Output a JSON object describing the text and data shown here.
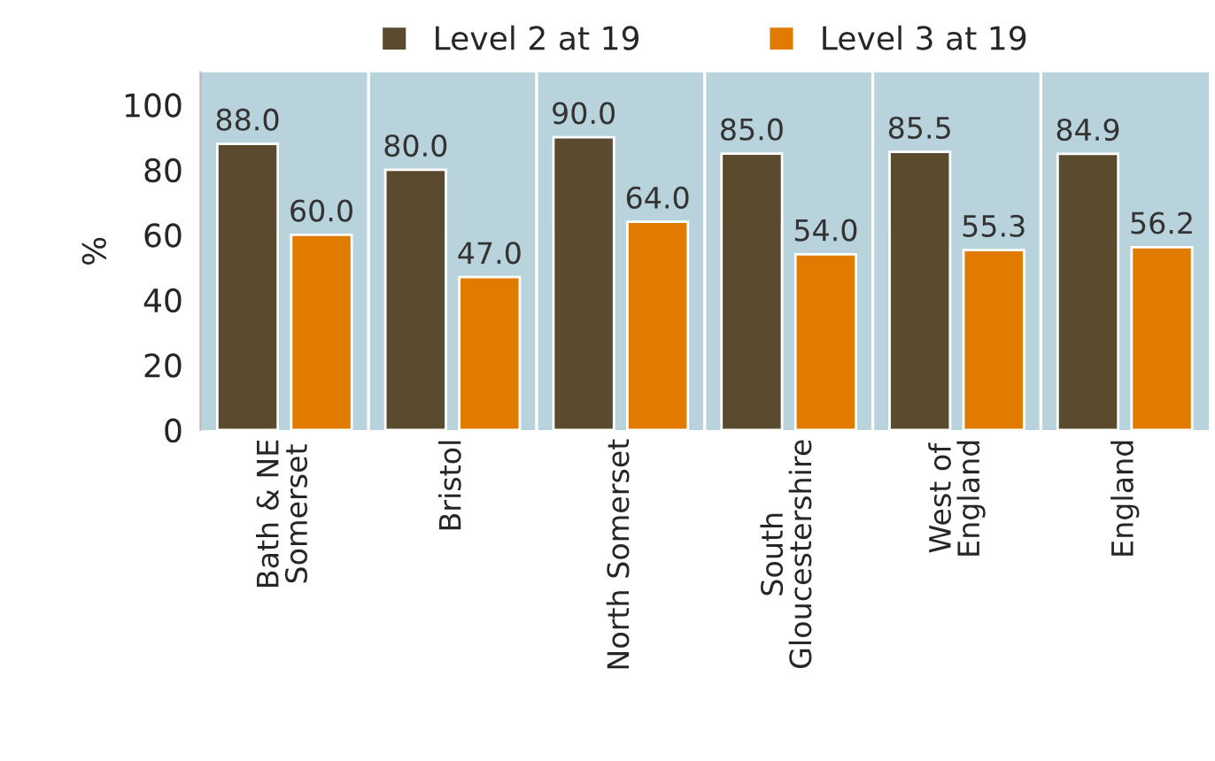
{
  "chart_data": {
    "type": "bar",
    "ylabel": "%",
    "categories": [
      "Bath & NE\nSomerset",
      "Bristol",
      "North Somerset",
      "South\nGloucestershire",
      "West of\nEngland",
      "England"
    ],
    "series": [
      {
        "name": "Level 2 at 19",
        "color": "#5a4a2e",
        "values": [
          88.0,
          80.0,
          90.0,
          85.0,
          85.5,
          84.9
        ],
        "value_labels": [
          "88.0",
          "80.0",
          "90.0",
          "85.0",
          "85.5",
          "84.9"
        ]
      },
      {
        "name": "Level 3 at 19",
        "color": "#e07b00",
        "values": [
          60.0,
          47.0,
          64.0,
          54.0,
          55.3,
          56.2
        ],
        "value_labels": [
          "60.0",
          "47.0",
          "64.0",
          "54.0",
          "55.3",
          "56.2"
        ]
      }
    ],
    "ylim": [
      0,
      110
    ],
    "yticks": [
      0,
      20,
      40,
      60,
      80,
      100
    ],
    "grid": "x",
    "legend": "top"
  }
}
